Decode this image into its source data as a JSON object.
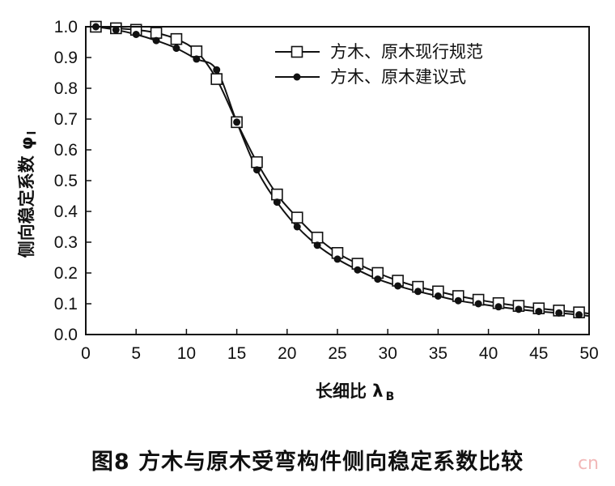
{
  "caption": "图8 方木与原木受弯构件侧向稳定系数比较",
  "watermark": "cn",
  "chart_data": {
    "type": "line",
    "xlabel": "长细比 λ",
    "xlabel_sub": "B",
    "ylabel": "侧向稳定系数 φ",
    "ylabel_sub": "l",
    "xlim": [
      0,
      50
    ],
    "ylim": [
      0,
      1.0
    ],
    "xticks": [
      "0",
      "5",
      "10",
      "15",
      "20",
      "25",
      "30",
      "35",
      "40",
      "45",
      "50"
    ],
    "yticks": [
      "0.0",
      "0.1",
      "0.2",
      "0.3",
      "0.4",
      "0.5",
      "0.6",
      "0.7",
      "0.8",
      "0.9",
      "1.0"
    ],
    "grid": false,
    "legend_position": "top-right",
    "series": [
      {
        "name": "方木、原木现行规范",
        "marker": "open-square",
        "x": [
          1,
          3,
          5,
          7,
          9,
          11,
          13,
          15,
          17,
          19,
          21,
          23,
          25,
          27,
          29,
          31,
          33,
          35,
          37,
          39,
          41,
          43,
          45,
          47,
          49
        ],
        "y": [
          1.0,
          0.995,
          0.99,
          0.98,
          0.96,
          0.92,
          0.83,
          0.69,
          0.56,
          0.455,
          0.38,
          0.315,
          0.265,
          0.23,
          0.2,
          0.175,
          0.155,
          0.14,
          0.125,
          0.113,
          0.102,
          0.093,
          0.085,
          0.078,
          0.072
        ]
      },
      {
        "name": "方木、原木建议式",
        "marker": "filled-circle",
        "x": [
          1,
          3,
          5,
          7,
          9,
          11,
          13,
          15,
          17,
          19,
          21,
          23,
          25,
          27,
          29,
          31,
          33,
          35,
          37,
          39,
          41,
          43,
          45,
          47,
          49
        ],
        "y": [
          1.0,
          0.99,
          0.975,
          0.955,
          0.93,
          0.895,
          0.86,
          0.69,
          0.535,
          0.43,
          0.35,
          0.29,
          0.245,
          0.21,
          0.18,
          0.158,
          0.14,
          0.125,
          0.11,
          0.1,
          0.09,
          0.082,
          0.075,
          0.07,
          0.064
        ]
      }
    ]
  }
}
